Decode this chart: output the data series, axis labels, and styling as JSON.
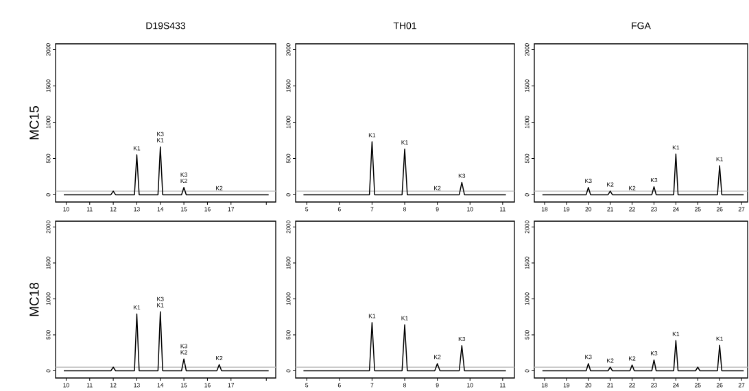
{
  "chart_data": [
    {
      "type": "line",
      "title": "D19S433",
      "ylabel": "MC15",
      "color": "#000000",
      "tick_labels": "xy",
      "x": [
        9.9,
        11.9,
        12,
        12.1,
        12.9,
        13,
        13.1,
        13.9,
        14,
        14.1,
        14.9,
        15,
        15.1,
        16.5,
        18.6
      ],
      "values": [
        0,
        0,
        50,
        0,
        0,
        550,
        0,
        0,
        660,
        0,
        0,
        100,
        0,
        0,
        0
      ],
      "xlim": [
        9.55,
        18.9
      ],
      "ylim": [
        -100,
        2080
      ],
      "xticks": [
        10,
        11,
        12,
        13,
        14,
        15,
        16,
        17,
        {
          "value": 18.5,
          "label": null
        }
      ],
      "yticks": [
        0,
        500,
        1000,
        1500,
        2000
      ],
      "ref_lines": [
        {
          "axis": "y",
          "value": 50,
          "color": "#bebebe"
        }
      ],
      "annotations": [
        {
          "text": "K1",
          "x": 13,
          "y": 550
        },
        {
          "text": "K1",
          "x": 14,
          "y": 660
        },
        {
          "text": "K3",
          "x": 14,
          "y": 660
        },
        {
          "text": "K2",
          "x": 15,
          "y": 100
        },
        {
          "text": "K3",
          "x": 15,
          "y": 100
        },
        {
          "text": "K2",
          "x": 16.5,
          "y": 0
        }
      ]
    },
    {
      "type": "line",
      "title": "TH01",
      "color": "#000000",
      "tick_labels": "xy",
      "x": [
        4.9,
        6.92,
        7,
        7.08,
        7.92,
        8,
        8.08,
        9,
        9.67,
        9.75,
        9.83,
        11.1
      ],
      "values": [
        0,
        0,
        730,
        0,
        0,
        630,
        0,
        0,
        0,
        170,
        0,
        0
      ],
      "xlim": [
        4.66,
        11.36
      ],
      "ylim": [
        -100,
        2080
      ],
      "xticks": [
        5,
        6,
        7,
        8,
        9,
        10,
        11
      ],
      "yticks": [
        0,
        500,
        1000,
        1500,
        2000
      ],
      "ref_lines": [
        {
          "axis": "y",
          "value": 50,
          "color": "#bebebe"
        }
      ],
      "annotations": [
        {
          "text": "K1",
          "x": 7,
          "y": 730
        },
        {
          "text": "K1",
          "x": 8,
          "y": 630
        },
        {
          "text": "K2",
          "x": 9,
          "y": 0
        },
        {
          "text": "K3",
          "x": 9.75,
          "y": 170
        }
      ]
    },
    {
      "type": "line",
      "title": "FGA",
      "color": "#000000",
      "tick_labels": "xy",
      "x": [
        17.9,
        19.9,
        20,
        20.1,
        20.9,
        21,
        21.1,
        22,
        22.9,
        23,
        23.1,
        23.9,
        24,
        24.1,
        25.9,
        26,
        26.1,
        27.1
      ],
      "values": [
        0,
        0,
        100,
        0,
        0,
        50,
        0,
        0,
        0,
        110,
        0,
        0,
        560,
        0,
        0,
        400,
        0,
        0
      ],
      "xlim": [
        17.53,
        27.28
      ],
      "ylim": [
        -100,
        2080
      ],
      "xticks": [
        18,
        19,
        20,
        21,
        22,
        23,
        24,
        25,
        26,
        27
      ],
      "yticks": [
        0,
        500,
        1000,
        1500,
        2000
      ],
      "ref_lines": [
        {
          "axis": "y",
          "value": 50,
          "color": "#bebebe"
        }
      ],
      "annotations": [
        {
          "text": "K3",
          "x": 20,
          "y": 100
        },
        {
          "text": "K2",
          "x": 21,
          "y": 50
        },
        {
          "text": "K2",
          "x": 22,
          "y": 0
        },
        {
          "text": "K3",
          "x": 23,
          "y": 110
        },
        {
          "text": "K1",
          "x": 24,
          "y": 560
        },
        {
          "text": "K1",
          "x": 26,
          "y": 400
        }
      ]
    },
    {
      "type": "line",
      "ylabel": "MC18",
      "color": "#000000",
      "tick_labels": "xy",
      "x": [
        9.9,
        11.9,
        12,
        12.1,
        12.9,
        13,
        13.1,
        13.9,
        14,
        14.1,
        14.9,
        15,
        15.1,
        16.4,
        16.5,
        16.6,
        18.6
      ],
      "values": [
        0,
        0,
        50,
        0,
        0,
        790,
        0,
        0,
        820,
        0,
        0,
        165,
        0,
        0,
        85,
        0,
        0
      ],
      "xlim": [
        9.55,
        18.9
      ],
      "ylim": [
        -100,
        2080
      ],
      "xticks": [
        10,
        11,
        12,
        13,
        14,
        15,
        16,
        17,
        {
          "value": 18.5,
          "label": null
        }
      ],
      "yticks": [
        0,
        500,
        1000,
        1500,
        2000
      ],
      "ref_lines": [
        {
          "axis": "y",
          "value": 50,
          "color": "#bebebe"
        }
      ],
      "annotations": [
        {
          "text": "K1",
          "x": 13,
          "y": 790
        },
        {
          "text": "K1",
          "x": 14,
          "y": 820
        },
        {
          "text": "K3",
          "x": 14,
          "y": 820
        },
        {
          "text": "K2",
          "x": 15,
          "y": 165
        },
        {
          "text": "K3",
          "x": 15,
          "y": 165
        },
        {
          "text": "K2",
          "x": 16.5,
          "y": 85
        }
      ]
    },
    {
      "type": "line",
      "color": "#000000",
      "tick_labels": "xy",
      "x": [
        4.9,
        6.92,
        7,
        7.08,
        7.92,
        8,
        8.08,
        8.92,
        9,
        9.08,
        9.67,
        9.75,
        9.83,
        11.1
      ],
      "values": [
        0,
        0,
        670,
        0,
        0,
        640,
        0,
        0,
        100,
        0,
        0,
        350,
        0,
        0
      ],
      "xlim": [
        4.66,
        11.36
      ],
      "ylim": [
        -100,
        2080
      ],
      "xticks": [
        5,
        6,
        7,
        8,
        9,
        10,
        11
      ],
      "yticks": [
        0,
        500,
        1000,
        1500,
        2000
      ],
      "ref_lines": [
        {
          "axis": "y",
          "value": 50,
          "color": "#bebebe"
        }
      ],
      "annotations": [
        {
          "text": "K1",
          "x": 7,
          "y": 670
        },
        {
          "text": "K1",
          "x": 8,
          "y": 640
        },
        {
          "text": "K2",
          "x": 9,
          "y": 100
        },
        {
          "text": "K3",
          "x": 9.75,
          "y": 350
        }
      ]
    },
    {
      "type": "line",
      "color": "#000000",
      "tick_labels": "xy",
      "x": [
        17.9,
        19.9,
        20,
        20.1,
        20.9,
        21,
        21.1,
        21.9,
        22,
        22.1,
        22.9,
        23,
        23.1,
        23.9,
        24,
        24.1,
        24.9,
        25,
        25.1,
        25.9,
        26,
        26.1,
        27.1
      ],
      "values": [
        0,
        0,
        100,
        0,
        0,
        50,
        0,
        0,
        80,
        0,
        0,
        150,
        0,
        0,
        420,
        0,
        0,
        50,
        0,
        0,
        355,
        0,
        0
      ],
      "xlim": [
        17.53,
        27.28
      ],
      "ylim": [
        -100,
        2080
      ],
      "xticks": [
        18,
        19,
        20,
        21,
        22,
        23,
        24,
        25,
        26,
        27
      ],
      "yticks": [
        0,
        500,
        1000,
        1500,
        2000
      ],
      "ref_lines": [
        {
          "axis": "y",
          "value": 50,
          "color": "#bebebe"
        }
      ],
      "annotations": [
        {
          "text": "K3",
          "x": 20,
          "y": 100
        },
        {
          "text": "K2",
          "x": 21,
          "y": 50
        },
        {
          "text": "K2",
          "x": 22,
          "y": 80
        },
        {
          "text": "K3",
          "x": 23,
          "y": 150
        },
        {
          "text": "K1",
          "x": 24,
          "y": 420
        },
        {
          "text": "K1",
          "x": 26,
          "y": 355
        }
      ]
    }
  ]
}
